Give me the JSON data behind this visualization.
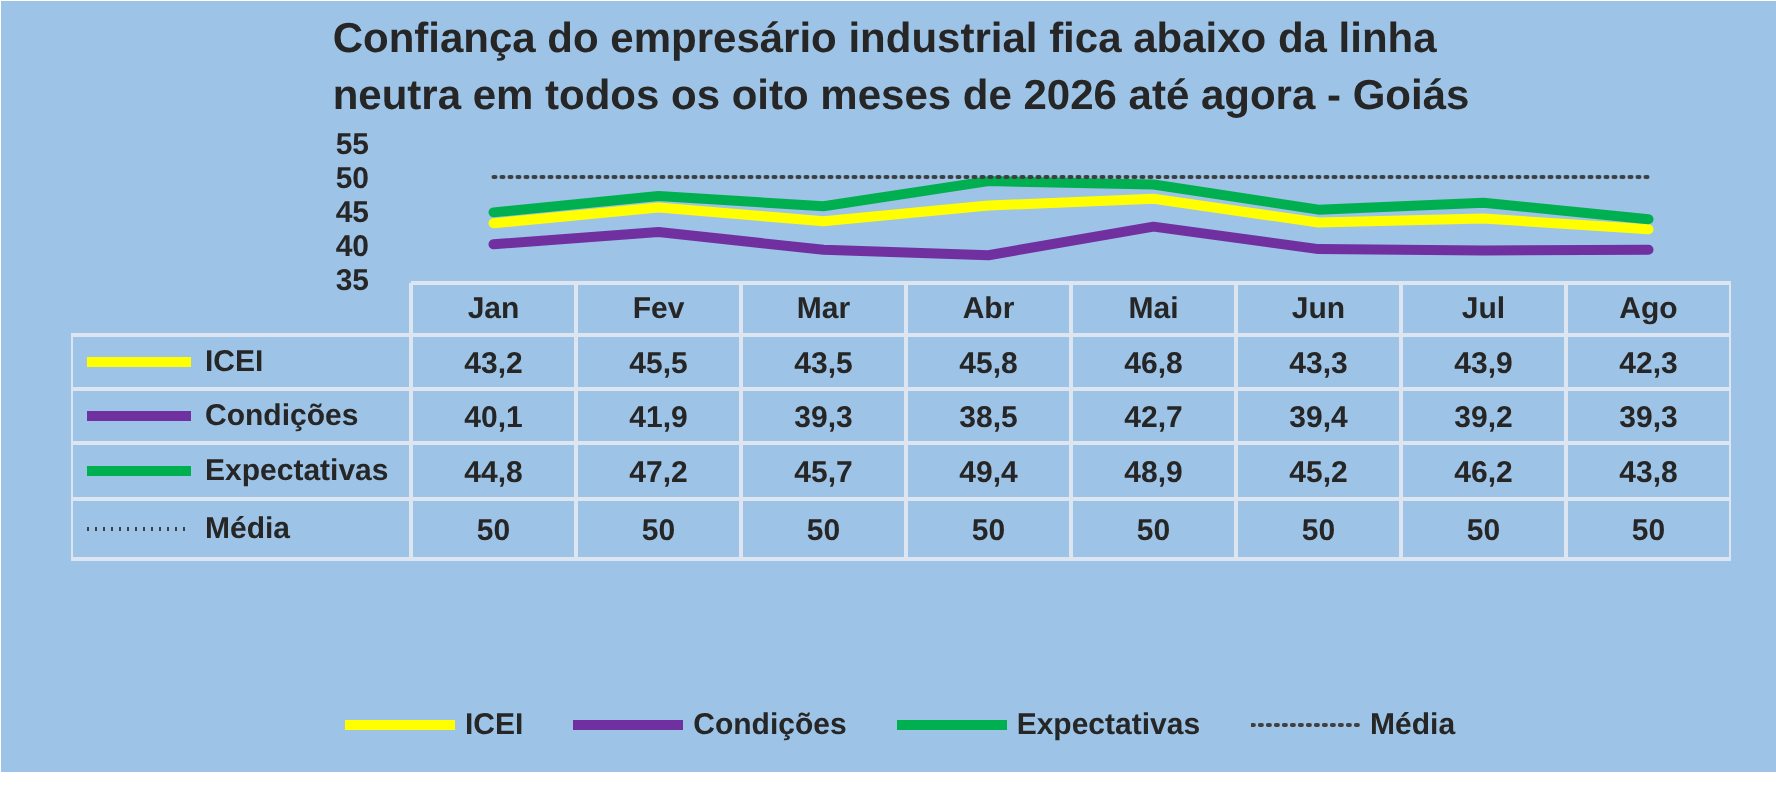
{
  "chart_data": {
    "type": "line",
    "title": "Confiança do empresário industrial fica abaixo da linha neutra em todos os oito meses de 2026 até agora - Goiás",
    "categories": [
      "Jan",
      "Fev",
      "Mar",
      "Abr",
      "Mai",
      "Jun",
      "Jul",
      "Ago"
    ],
    "series": [
      {
        "name": "ICEI",
        "color": "#ffff00",
        "values": [
          43.2,
          45.5,
          43.5,
          45.8,
          46.8,
          43.3,
          43.9,
          42.3
        ],
        "value_labels": [
          "43,2",
          "45,5",
          "43,5",
          "45,8",
          "46,8",
          "43,3",
          "43,9",
          "42,3"
        ]
      },
      {
        "name": "Condições",
        "color": "#7030a0",
        "values": [
          40.1,
          41.9,
          39.3,
          38.5,
          42.7,
          39.4,
          39.2,
          39.3
        ],
        "value_labels": [
          "40,1",
          "41,9",
          "39,3",
          "38,5",
          "42,7",
          "39,4",
          "39,2",
          "39,3"
        ]
      },
      {
        "name": "Expectativas",
        "color": "#00b050",
        "values": [
          44.8,
          47.2,
          45.7,
          49.4,
          48.9,
          45.2,
          46.2,
          43.8
        ],
        "value_labels": [
          "44,8",
          "47,2",
          "45,7",
          "49,4",
          "48,9",
          "45,2",
          "46,2",
          "43,8"
        ]
      },
      {
        "name": "Média",
        "color": "#404040",
        "line_style": "dotted",
        "values": [
          50,
          50,
          50,
          50,
          50,
          50,
          50,
          50
        ],
        "value_labels": [
          "50",
          "50",
          "50",
          "50",
          "50",
          "50",
          "50",
          "50"
        ]
      }
    ],
    "ylim": [
      35,
      55
    ],
    "yticks": [
      35,
      40,
      45,
      50,
      55
    ],
    "legend": "bottom"
  }
}
